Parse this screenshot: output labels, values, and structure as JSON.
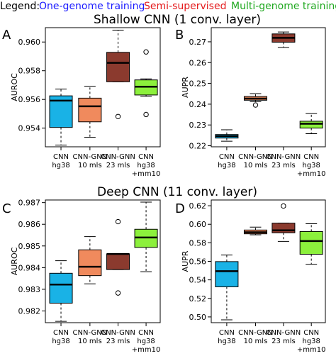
{
  "legend": {
    "prefix": "Legend:",
    "items": [
      {
        "label": "One-genome training",
        "color": "#1a1aff"
      },
      {
        "label": "Semi-supervised",
        "color": "#e41a1c"
      },
      {
        "label": "Multi-genome training",
        "color": "#1fa81f"
      }
    ]
  },
  "sections": [
    {
      "title": "Shallow CNN (1 conv. layer)"
    },
    {
      "title": "Deep CNN (11 conv. layer)"
    }
  ],
  "box_colors": [
    "#19b2e6",
    "#f08a5d",
    "#8b3a2e",
    "#8cf03c"
  ],
  "chart_data": [
    {
      "type": "box",
      "panel_label": "A",
      "ylabel": "AUROC",
      "ylim": [
        0.9527,
        0.961
      ],
      "yticks": [
        0.954,
        0.956,
        0.958,
        0.96
      ],
      "yticklabels": [
        "0.954",
        "0.956",
        "0.958",
        "0.960"
      ],
      "categories": [
        {
          "line1": "CNN",
          "line2": "hg38",
          "line3": ""
        },
        {
          "line1": "CNN-GNN",
          "line2": "10 mls",
          "line3": ""
        },
        {
          "line1": "CNN-GNN",
          "line2": "23 mls",
          "line3": ""
        },
        {
          "line1": "CNN",
          "line2": "hg38",
          "line3": "+mm10"
        }
      ],
      "boxes": [
        {
          "whisker_low": 0.95282,
          "q1": 0.95405,
          "median": 0.95592,
          "q3": 0.95625,
          "whisker_high": 0.95672,
          "outliers": []
        },
        {
          "whisker_low": 0.95337,
          "q1": 0.95444,
          "median": 0.95552,
          "q3": 0.95609,
          "whisker_high": 0.95692,
          "outliers": []
        },
        {
          "whisker_low": 0.95723,
          "q1": 0.95723,
          "median": 0.95855,
          "q3": 0.95928,
          "whisker_high": 0.96083,
          "outliers": [
            0.95481
          ]
        },
        {
          "whisker_low": 0.95622,
          "q1": 0.95631,
          "median": 0.95689,
          "q3": 0.95736,
          "whisker_high": 0.95743,
          "outliers": [
            0.95495,
            0.95931
          ]
        }
      ]
    },
    {
      "type": "box",
      "panel_label": "B",
      "ylabel": "AUPR",
      "ylim": [
        0.2195,
        0.2768
      ],
      "yticks": [
        0.22,
        0.23,
        0.24,
        0.25,
        0.26,
        0.27
      ],
      "yticklabels": [
        "0.22",
        "0.23",
        "0.24",
        "0.25",
        "0.26",
        "0.27"
      ],
      "categories": [
        {
          "line1": "CNN",
          "line2": "hg38",
          "line3": ""
        },
        {
          "line1": "CNN-GNN",
          "line2": "10 mls",
          "line3": ""
        },
        {
          "line1": "CNN-GNN",
          "line2": "23 mls",
          "line3": ""
        },
        {
          "line1": "CNN",
          "line2": "hg38",
          "line3": "+mm10"
        }
      ],
      "boxes": [
        {
          "whisker_low": 0.2222,
          "q1": 0.2237,
          "median": 0.2246,
          "q3": 0.2254,
          "whisker_high": 0.2277,
          "outliers": []
        },
        {
          "whisker_low": 0.2412,
          "q1": 0.2419,
          "median": 0.2427,
          "q3": 0.2437,
          "whisker_high": 0.2451,
          "outliers": [
            0.2396
          ]
        },
        {
          "whisker_low": 0.2673,
          "q1": 0.2698,
          "median": 0.2719,
          "q3": 0.2738,
          "whisker_high": 0.2747,
          "outliers": []
        },
        {
          "whisker_low": 0.2258,
          "q1": 0.2285,
          "median": 0.2306,
          "q3": 0.2318,
          "whisker_high": 0.2355,
          "outliers": []
        }
      ]
    },
    {
      "type": "box",
      "panel_label": "C",
      "ylabel": "AUROC",
      "ylim": [
        0.98146,
        0.98712
      ],
      "yticks": [
        0.982,
        0.983,
        0.984,
        0.985,
        0.986,
        0.987
      ],
      "yticklabels": [
        "0.982",
        "0.983",
        "0.984",
        "0.985",
        "0.986",
        "0.987"
      ],
      "categories": [
        {
          "line1": "CNN",
          "line2": "hg38",
          "line3": ""
        },
        {
          "line1": "CNN-GNN",
          "line2": "10 mls",
          "line3": ""
        },
        {
          "line1": "CNN-GNN",
          "line2": "23 mls",
          "line3": ""
        },
        {
          "line1": "CNN",
          "line2": "hg38",
          "line3": "+mm10"
        }
      ],
      "boxes": [
        {
          "whisker_low": 0.98152,
          "q1": 0.98236,
          "median": 0.98322,
          "q3": 0.98374,
          "whisker_high": 0.98432,
          "outliers": []
        },
        {
          "whisker_low": 0.98325,
          "q1": 0.98363,
          "median": 0.98404,
          "q3": 0.98482,
          "whisker_high": 0.98543,
          "outliers": []
        },
        {
          "whisker_low": 0.98391,
          "q1": 0.98391,
          "median": 0.98463,
          "q3": 0.98463,
          "whisker_high": 0.98463,
          "outliers": [
            0.98612,
            0.98283
          ]
        },
        {
          "whisker_low": 0.98381,
          "q1": 0.98493,
          "median": 0.98539,
          "q3": 0.98577,
          "whisker_high": 0.98702,
          "outliers": []
        }
      ]
    },
    {
      "type": "box",
      "panel_label": "D",
      "ylabel": "AUPR",
      "ylim": [
        0.4938,
        0.6262
      ],
      "yticks": [
        0.5,
        0.52,
        0.54,
        0.56,
        0.58,
        0.6,
        0.62
      ],
      "yticklabels": [
        "0.50",
        "0.52",
        "0.54",
        "0.56",
        "0.58",
        "0.60",
        "0.62"
      ],
      "categories": [
        {
          "line1": "CNN",
          "line2": "hg38",
          "line3": ""
        },
        {
          "line1": "CNN-GNN",
          "line2": "10 mls",
          "line3": ""
        },
        {
          "line1": "CNN-GNN",
          "line2": "23 mls",
          "line3": ""
        },
        {
          "line1": "CNN",
          "line2": "hg38",
          "line3": "+mm10"
        }
      ],
      "boxes": [
        {
          "whisker_low": 0.4969,
          "q1": 0.5325,
          "median": 0.5494,
          "q3": 0.5597,
          "whisker_high": 0.5668,
          "outliers": []
        },
        {
          "whisker_low": 0.5886,
          "q1": 0.5897,
          "median": 0.5914,
          "q3": 0.5938,
          "whisker_high": 0.5969,
          "outliers": []
        },
        {
          "whisker_low": 0.5815,
          "q1": 0.5908,
          "median": 0.5935,
          "q3": 0.6012,
          "whisker_high": 0.6012,
          "outliers": [
            0.6197
          ]
        },
        {
          "whisker_low": 0.5568,
          "q1": 0.5676,
          "median": 0.5819,
          "q3": 0.5922,
          "whisker_high": 0.6006,
          "outliers": []
        }
      ]
    }
  ]
}
